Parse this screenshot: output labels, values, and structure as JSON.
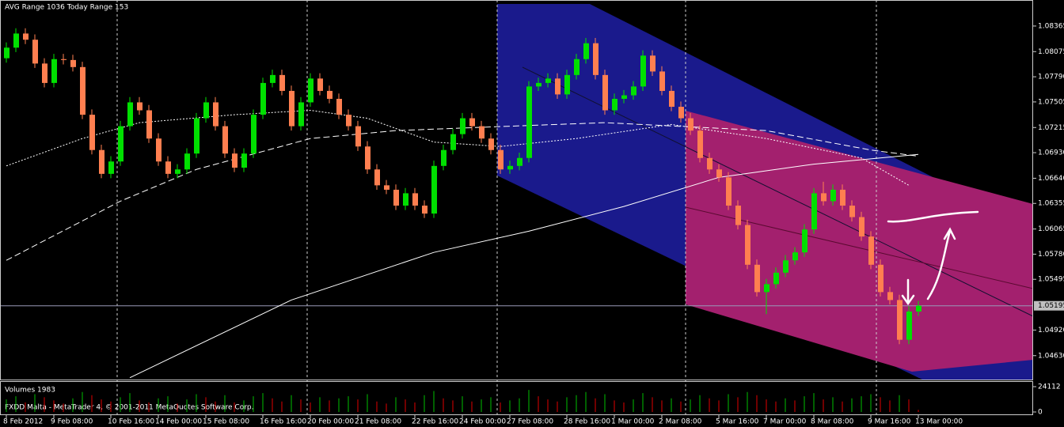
{
  "chart_data": {
    "type": "candlestick",
    "title": "AVG Range 1036    Today Range 153",
    "footer": "FXDD Malta - MetaTrader 4, © 2001-2011 MetaQuotes Software Corp.",
    "up_color": "#00e000",
    "down_color": "#ff7f50",
    "categories": [
      "8 Feb 2012",
      null,
      null,
      null,
      null,
      "9 Feb 08:00",
      null,
      null,
      null,
      null,
      null,
      "10 Feb 16:00",
      null,
      null,
      null,
      null,
      "14 Feb 00:00",
      null,
      null,
      null,
      null,
      "15 Feb 08:00",
      null,
      null,
      null,
      null,
      null,
      "16 Feb 16:00",
      null,
      null,
      null,
      null,
      "20 Feb 00:00",
      null,
      null,
      null,
      null,
      "21 Feb 08:00",
      null,
      null,
      null,
      null,
      null,
      "22 Feb 16:00",
      null,
      null,
      null,
      null,
      "24 Feb 00:00",
      null,
      null,
      null,
      null,
      "27 Feb 08:00",
      null,
      null,
      null,
      null,
      null,
      "28 Feb 16:00",
      null,
      null,
      null,
      null,
      "1 Mar 00:00",
      null,
      null,
      null,
      null,
      "2 Mar 08:00",
      null,
      null,
      null,
      null,
      null,
      "5 Mar 16:00",
      null,
      null,
      null,
      null,
      "7 Mar 00:00",
      null,
      null,
      null,
      null,
      "8 Mar 08:00",
      null,
      null,
      null,
      null,
      null,
      "9 Mar 16:00",
      null,
      null,
      null,
      null,
      "13 Mar 00:00"
    ],
    "open": [
      1.08,
      1.0812,
      1.0828,
      1.0821,
      1.0794,
      1.0772,
      1.0799,
      1.0798,
      1.079,
      1.0736,
      1.0696,
      1.0669,
      1.0683,
      1.0723,
      1.075,
      1.0741,
      1.0709,
      1.0683,
      1.0669,
      1.0674,
      1.0692,
      1.0732,
      1.075,
      1.0723,
      1.0692,
      1.0676,
      1.0692,
      1.0736,
      1.0772,
      1.0781,
      1.0763,
      1.0723,
      1.075,
      1.0777,
      1.0763,
      1.0754,
      1.0736,
      1.0723,
      1.07,
      1.0674,
      1.0656,
      1.0651,
      1.0633,
      1.0647,
      1.0633,
      1.0624,
      1.0678,
      1.0696,
      1.0714,
      1.0732,
      1.0723,
      1.0709,
      1.0696,
      1.0674,
      1.0678,
      1.0687,
      1.0768,
      1.0772,
      1.0777,
      1.0759,
      1.0781,
      1.0799,
      1.0817,
      1.0781,
      1.0741,
      1.0754,
      1.0758,
      1.0768,
      1.0803,
      1.0785,
      1.0763,
      1.0745,
      1.0732,
      1.0718,
      1.0687,
      1.0674,
      1.0665,
      1.0633,
      1.0611,
      1.0566,
      1.0535,
      1.0544,
      1.0557,
      1.0571,
      1.058,
      1.0606,
      1.0647,
      1.0638,
      1.0651,
      1.0633,
      1.062,
      1.0598,
      1.0566,
      1.0535,
      1.0526,
      1.0481,
      1.0513
    ],
    "high": [
      1.0818,
      1.0834,
      1.0834,
      1.0827,
      1.08,
      1.0805,
      1.0805,
      1.0804,
      1.0796,
      1.0742,
      1.0702,
      1.0689,
      1.0729,
      1.0756,
      1.0756,
      1.0747,
      1.0715,
      1.0689,
      1.068,
      1.0698,
      1.0738,
      1.0756,
      1.0756,
      1.0729,
      1.0698,
      1.0698,
      1.0742,
      1.0778,
      1.0787,
      1.0787,
      1.0769,
      1.0756,
      1.0783,
      1.0783,
      1.0769,
      1.076,
      1.0742,
      1.0729,
      1.0706,
      1.068,
      1.0662,
      1.0657,
      1.0653,
      1.0653,
      1.0639,
      1.0684,
      1.0702,
      1.072,
      1.0738,
      1.0738,
      1.0729,
      1.0715,
      1.0702,
      1.0684,
      1.0693,
      1.0774,
      1.0778,
      1.0783,
      1.0783,
      1.0787,
      1.0805,
      1.0823,
      1.0823,
      1.0787,
      1.076,
      1.0764,
      1.0774,
      1.0809,
      1.0809,
      1.0791,
      1.0769,
      1.0751,
      1.0738,
      1.0724,
      1.0693,
      1.068,
      1.0671,
      1.0639,
      1.0617,
      1.0572,
      1.055,
      1.0563,
      1.0577,
      1.0586,
      1.0612,
      1.0653,
      1.066,
      1.0657,
      1.0657,
      1.0639,
      1.0626,
      1.0604,
      1.0572,
      1.0541,
      1.0532,
      1.0519,
      1.0525
    ],
    "low": [
      1.0795,
      1.0807,
      1.0816,
      1.0789,
      1.0767,
      1.0767,
      1.0793,
      1.0785,
      1.0731,
      1.0691,
      1.0664,
      1.0664,
      1.0678,
      1.0718,
      1.0736,
      1.0704,
      1.0678,
      1.0664,
      1.0664,
      1.0669,
      1.0687,
      1.0727,
      1.0718,
      1.0687,
      1.0671,
      1.0671,
      1.0687,
      1.0731,
      1.0767,
      1.0758,
      1.0718,
      1.0718,
      1.0745,
      1.0758,
      1.0749,
      1.0731,
      1.0718,
      1.0695,
      1.0669,
      1.0651,
      1.0646,
      1.0628,
      1.0628,
      1.0628,
      1.0619,
      1.0619,
      1.0673,
      1.0691,
      1.0709,
      1.0718,
      1.0704,
      1.0691,
      1.0669,
      1.0669,
      1.0673,
      1.0682,
      1.0763,
      1.0767,
      1.0754,
      1.0754,
      1.0776,
      1.0794,
      1.0776,
      1.0736,
      1.0736,
      1.0749,
      1.0753,
      1.0763,
      1.078,
      1.0758,
      1.074,
      1.0727,
      1.0713,
      1.0682,
      1.0669,
      1.066,
      1.0628,
      1.0606,
      1.0561,
      1.053,
      1.051,
      1.0539,
      1.0552,
      1.0566,
      1.0575,
      1.0601,
      1.0633,
      1.0633,
      1.0628,
      1.0615,
      1.0593,
      1.0561,
      1.053,
      1.0521,
      1.0476,
      1.0476,
      1.0508
    ],
    "close": [
      1.0812,
      1.0828,
      1.0821,
      1.0794,
      1.0772,
      1.0799,
      1.0798,
      1.079,
      1.0736,
      1.0696,
      1.0669,
      1.0683,
      1.0723,
      1.075,
      1.0741,
      1.0709,
      1.0683,
      1.0669,
      1.0674,
      1.0692,
      1.0732,
      1.075,
      1.0723,
      1.0692,
      1.0676,
      1.0692,
      1.0736,
      1.0772,
      1.0781,
      1.0763,
      1.0723,
      1.075,
      1.0777,
      1.0763,
      1.0754,
      1.0736,
      1.0723,
      1.07,
      1.0674,
      1.0656,
      1.0651,
      1.0633,
      1.0647,
      1.0633,
      1.0624,
      1.0678,
      1.0696,
      1.0714,
      1.0732,
      1.0723,
      1.0709,
      1.0696,
      1.0674,
      1.0678,
      1.0687,
      1.0768,
      1.0772,
      1.0777,
      1.0759,
      1.0781,
      1.0799,
      1.0817,
      1.0781,
      1.0741,
      1.0754,
      1.0758,
      1.0768,
      1.0803,
      1.0785,
      1.0763,
      1.0745,
      1.0732,
      1.0718,
      1.0687,
      1.0674,
      1.0665,
      1.0633,
      1.0611,
      1.0566,
      1.0535,
      1.0544,
      1.0557,
      1.0571,
      1.058,
      1.0606,
      1.0647,
      1.0638,
      1.0651,
      1.0633,
      1.062,
      1.0598,
      1.0566,
      1.0535,
      1.0526,
      1.0481,
      1.0513,
      1.05195
    ],
    "ylim": [
      1.0435,
      1.0866
    ],
    "yticks": [
      1.08365,
      1.08075,
      {
        "value": 1.0779,
        "label": "1.07790"
      },
      1.07505,
      1.07215,
      {
        "value": 1.0693,
        "label": "1.06930"
      },
      {
        "value": 1.0664,
        "label": "1.06640"
      },
      1.06355,
      1.06065,
      {
        "value": 1.0578,
        "label": "1.05780"
      },
      1.05495,
      {
        "value": 1.0492,
        "label": "1.04920"
      },
      {
        "value": 1.0463,
        "label": "1.04630"
      }
    ],
    "current_price": 1.05195,
    "moving_averages": [
      {
        "style": "solid",
        "color": "#ffffff",
        "x": [
          13,
          30,
          45,
          55,
          65,
          75,
          85,
          96
        ],
        "values": [
          1.0438,
          1.0526,
          1.058,
          1.0604,
          1.0632,
          1.0665,
          1.068,
          1.0691
        ]
      },
      {
        "style": "dashed",
        "color": "#ffffff",
        "x": [
          0,
          12,
          20,
          32,
          41,
          53,
          63,
          80,
          91,
          96
        ],
        "values": [
          1.0571,
          1.0638,
          1.0674,
          1.0709,
          1.0718,
          1.0723,
          1.0727,
          1.0718,
          1.0696,
          1.0689
        ]
      },
      {
        "style": "dotted",
        "color": "#ffffff",
        "x": [
          0,
          8,
          14,
          24,
          32,
          38,
          45,
          52,
          60,
          70,
          80,
          90,
          95
        ],
        "values": [
          1.0678,
          1.0709,
          1.0727,
          1.0736,
          1.0741,
          1.0732,
          1.0705,
          1.07,
          1.0709,
          1.0725,
          1.0709,
          1.0687,
          1.0656
        ]
      }
    ],
    "volume_title": "Volumes 1983",
    "volumes": [
      12000,
      15000,
      9000,
      17000,
      14000,
      11000,
      8000,
      13000,
      19000,
      16000,
      12000,
      10000,
      14000,
      18000,
      11000,
      9000,
      13000,
      15000,
      8000,
      12000,
      17000,
      14000,
      10000,
      16000,
      9000,
      11000,
      15000,
      18000,
      13000,
      10000,
      16000,
      12000,
      9000,
      14000,
      11000,
      13000,
      15000,
      12000,
      17000,
      10000,
      8000,
      14000,
      12000,
      9000,
      16000,
      20000,
      13000,
      11000,
      15000,
      10000,
      12000,
      14000,
      9000,
      11000,
      13000,
      21000,
      15000,
      12000,
      10000,
      14000,
      16000,
      19000,
      13000,
      17000,
      11000,
      9000,
      12000,
      18000,
      14000,
      11000,
      13000,
      10000,
      12000,
      16000,
      13000,
      11000,
      17000,
      14000,
      19000,
      16000,
      12000,
      10000,
      13000,
      11000,
      15000,
      18000,
      12000,
      14000,
      10000,
      13000,
      15000,
      17000,
      14000,
      11000,
      16000,
      12000,
      1983
    ],
    "vlim": [
      0,
      24112
    ],
    "vticks": [
      24112,
      0
    ]
  }
}
